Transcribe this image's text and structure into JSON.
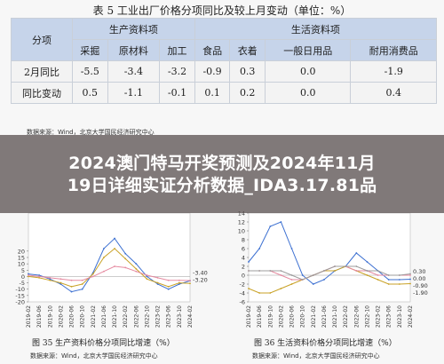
{
  "table": {
    "title": "表 5  工业出厂价格分项同比及较上月变动（单位：%）",
    "corner_label": "分项",
    "group_headers": [
      "生产资料项",
      "生活资料项"
    ],
    "columns": [
      "采掘",
      "原材料",
      "加工",
      "食品",
      "衣着",
      "一般日用品",
      "耐用消费品"
    ],
    "rows": [
      {
        "label": "2月同比",
        "values": [
          "-5.5",
          "-3.4",
          "-3.2",
          "-0.9",
          "0.3",
          "0.0",
          "-1.9"
        ]
      },
      {
        "label": "同比变动",
        "values": [
          "0.5",
          "-1.1",
          "-0.1",
          "0.1",
          "0.2",
          "0.0",
          "0.4"
        ]
      }
    ],
    "source": "数据来源：Wind，北京大学国民经济研究中心"
  },
  "banner": {
    "line1": "2024澳门特马开奖预测及2024年11月",
    "line2": "19日详细实证分析数据_IDA3.17.81品"
  },
  "chart_data": [
    {
      "type": "line",
      "title": "图 35  生产资料价格分项同比增速（%）",
      "x": [
        "2019-02",
        "2019-06",
        "2019-10",
        "2020-02",
        "2020-06",
        "2020-10",
        "2021-02",
        "2021-06",
        "2021-10",
        "2022-02",
        "2022-06",
        "2022-10",
        "2023-02",
        "2023-06",
        "2023-10",
        "2024-02"
      ],
      "ylim": [
        -20,
        50
      ],
      "yticks": [
        -20,
        -15,
        -10,
        -5,
        0,
        5,
        10,
        15,
        20
      ],
      "end_labels": [
        "-3.40",
        "-3.20"
      ],
      "series": [
        {
          "color": "#3b6fd1",
          "values": [
            2,
            1,
            -2,
            -6,
            -12,
            -10,
            3,
            22,
            30,
            18,
            10,
            0,
            -6,
            -10,
            -6,
            -3.4
          ]
        },
        {
          "color": "#c9a227",
          "values": [
            0,
            -1,
            -3,
            -5,
            -8,
            -6,
            2,
            15,
            22,
            14,
            6,
            -2,
            -5,
            -8,
            -5,
            -5.5
          ]
        },
        {
          "color": "#e58aa0",
          "values": [
            1,
            0,
            -1,
            -2,
            -3,
            -3,
            0,
            4,
            8,
            7,
            4,
            1,
            -1,
            -3,
            -3,
            -3.2
          ]
        }
      ],
      "source": "数据来源：Wind，北京大学国民经济研究中心"
    },
    {
      "type": "line",
      "title": "图 36  生活资料价格分项同比增速（%）",
      "x": [
        "2019-02",
        "2019-06",
        "2019-10",
        "2020-02",
        "2020-06",
        "2020-10",
        "2021-02",
        "2021-06",
        "2021-10",
        "2022-02",
        "2022-06",
        "2022-10",
        "2023-02",
        "2023-06",
        "2023-10",
        "2024-02"
      ],
      "ylim": [
        -6,
        14
      ],
      "yticks": [
        -6,
        -4,
        -2,
        0,
        2,
        4,
        6,
        8,
        10,
        12,
        14
      ],
      "end_labels": [
        "0.30",
        "0.00",
        "-0.90",
        "-1.90"
      ],
      "series": [
        {
          "color": "#3b6fd1",
          "values": [
            3,
            6,
            11,
            12,
            6,
            0,
            -2,
            -1,
            1,
            2,
            5,
            3,
            1,
            -1,
            -1,
            -0.9
          ]
        },
        {
          "color": "#c9a227",
          "values": [
            -3,
            -4,
            -4,
            -3,
            -2,
            -1,
            0,
            1,
            1,
            2,
            1,
            0,
            -1,
            -2,
            -2,
            -1.9
          ]
        },
        {
          "color": "#e58aa0",
          "values": [
            1,
            1,
            1,
            0,
            -1,
            -1,
            0,
            1,
            2,
            2,
            1,
            1,
            0,
            0,
            0,
            0.0
          ]
        },
        {
          "color": "#9c9c9c",
          "values": [
            1,
            1,
            1,
            1,
            0,
            -1,
            0,
            1,
            2,
            2,
            2,
            1,
            1,
            0,
            0,
            0.3
          ]
        }
      ],
      "source": "数据来源：Wind，北京大学国民经济研究中心"
    }
  ],
  "colors": {
    "header_bg": "#c6d4ea",
    "banner_bg": "#5f5656"
  }
}
